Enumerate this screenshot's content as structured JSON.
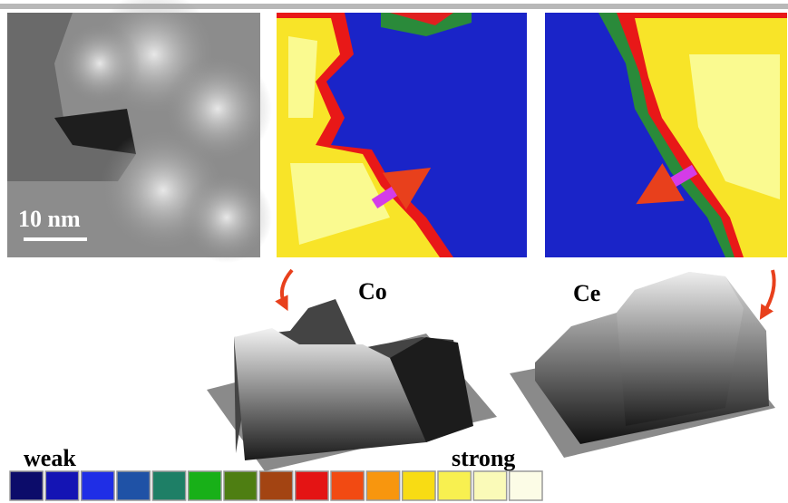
{
  "scale_bar": "10 nm",
  "maps": [
    {
      "label": "Co"
    },
    {
      "label": "Ce"
    }
  ],
  "color_scale": {
    "low": "weak",
    "high": "strong",
    "colors": [
      "#0c0c6a",
      "#1414b4",
      "#1f2ee6",
      "#1f52a6",
      "#1e7f66",
      "#18b018",
      "#4e7e12",
      "#a34412",
      "#e41414",
      "#f24a12",
      "#f8960e",
      "#f8dc14",
      "#f8f050",
      "#fafab8",
      "#fcfce6"
    ]
  }
}
